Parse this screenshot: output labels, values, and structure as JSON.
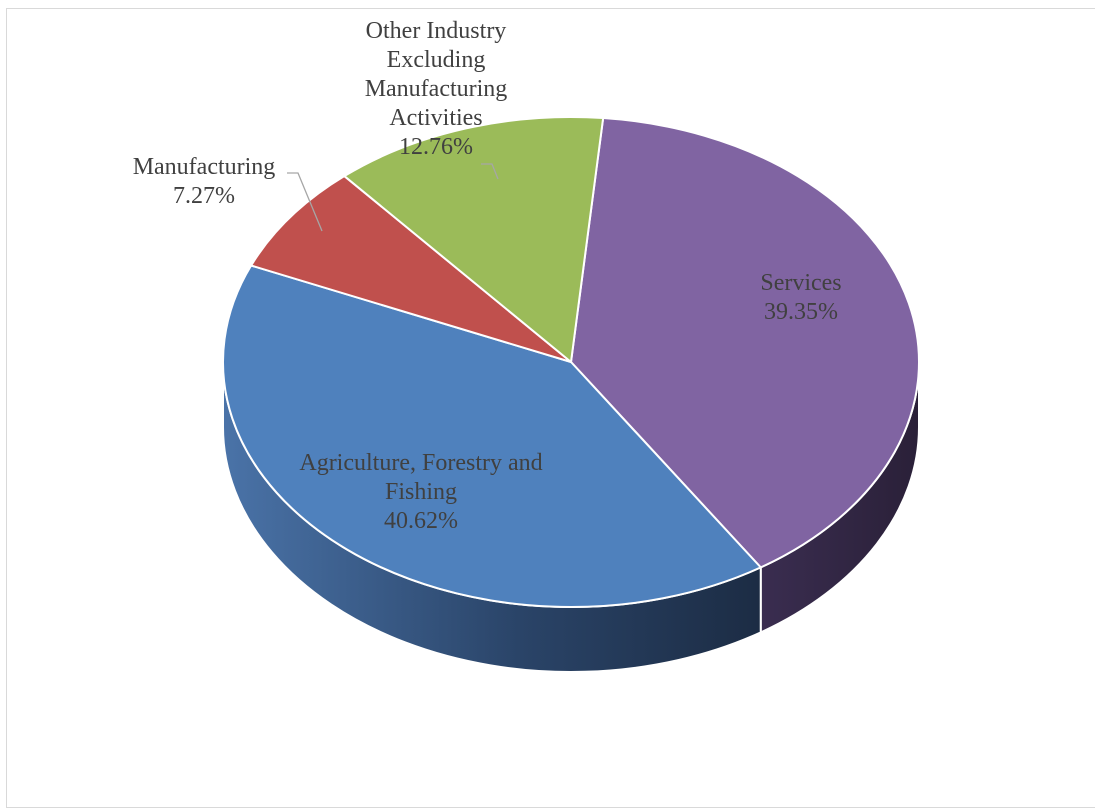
{
  "chart_data": {
    "type": "pie",
    "title": "",
    "slices": [
      {
        "label": "Agriculture, Forestry and Fishing",
        "value": 40.62,
        "display": "40.62%",
        "color": "#4f81bd",
        "side_color": "#1f3152"
      },
      {
        "label": "Manufacturing",
        "value": 7.27,
        "display": "7.27%",
        "color": "#c0504d",
        "side_color": "#6e2a28"
      },
      {
        "label": "Other Industry Excluding Manufacturing Activities",
        "value": 12.76,
        "display": "12.76%",
        "color": "#9bbb59",
        "side_color": "#56692f"
      },
      {
        "label": "Services",
        "value": 39.35,
        "display": "39.35%",
        "color": "#8064a2",
        "side_color": "#2e2340"
      }
    ],
    "label_lines": {
      "Agriculture, Forestry and Fishing": [
        "Agriculture, Forestry and",
        "Fishing",
        "40.62%"
      ],
      "Manufacturing": [
        "Manufacturing",
        "7.27%"
      ],
      "Other Industry Excluding Manufacturing Activities": [
        "Other Industry",
        "Excluding",
        "Manufacturing",
        "Activities",
        "12.76%"
      ],
      "Services": [
        "Services",
        "39.35%"
      ]
    },
    "style": "3d-pie",
    "legend": "none"
  }
}
